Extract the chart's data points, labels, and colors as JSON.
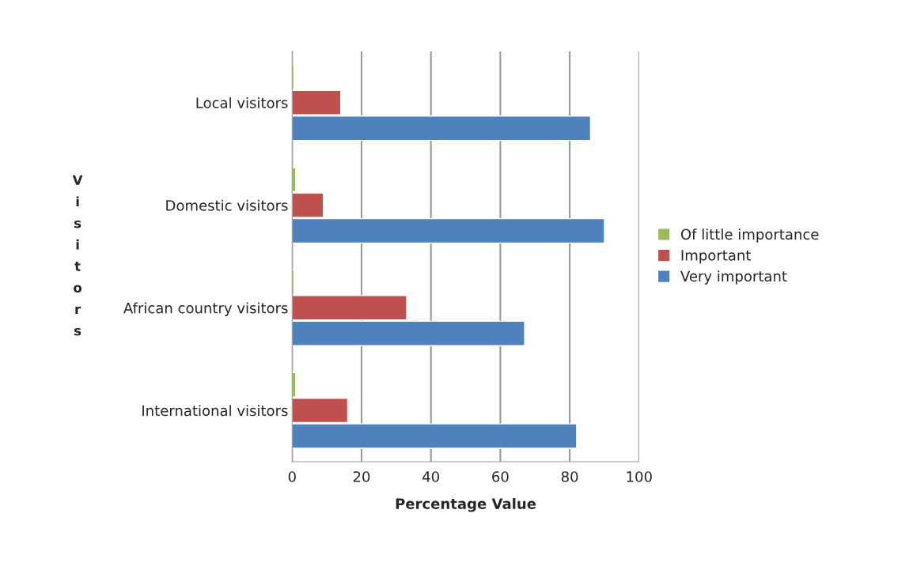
{
  "chart_data": {
    "type": "bar",
    "orientation": "horizontal",
    "xlabel": "Percentage Value",
    "ylabel": "Visitors",
    "categories": [
      "Local visitors",
      "Domestic visitors",
      "African country visitors",
      "International visitors"
    ],
    "series": [
      {
        "name": "Very important",
        "color": "#4f81bd",
        "values": [
          86,
          90,
          67,
          82
        ]
      },
      {
        "name": "Important",
        "color": "#c0504d",
        "values": [
          14,
          9,
          33,
          16
        ]
      },
      {
        "name": "Of little importance",
        "color": "#9bbb59",
        "values": [
          0.5,
          1,
          0.5,
          1
        ]
      }
    ],
    "xlim": [
      0,
      100
    ],
    "xticks": [
      0,
      20,
      40,
      60,
      80,
      100
    ],
    "grid": "x",
    "legend": "right"
  }
}
